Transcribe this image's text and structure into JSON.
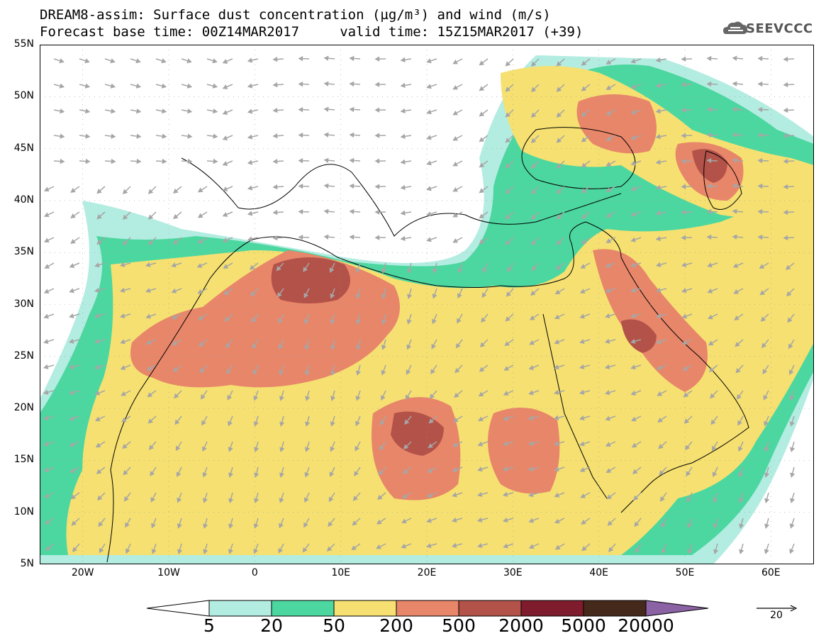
{
  "title": {
    "line1": "DREAM8-assim: Surface dust concentration (µg/m³) and wind (m/s)",
    "line2": "Forecast base time: 00Z14MAR2017     valid time: 15Z15MAR2017 (+39)"
  },
  "logo": {
    "text": "SEEVCCC",
    "icon": "cloud-icon"
  },
  "axes": {
    "lat_labels": [
      "55N",
      "50N",
      "45N",
      "40N",
      "35N",
      "30N",
      "25N",
      "20N",
      "15N",
      "10N",
      "5N"
    ],
    "lat_values": [
      55,
      50,
      45,
      40,
      35,
      30,
      25,
      20,
      15,
      10,
      5
    ],
    "lon_labels": [
      "20W",
      "10W",
      "0",
      "10E",
      "20E",
      "30E",
      "40E",
      "50E",
      "60E"
    ],
    "lon_values": [
      -20,
      -10,
      0,
      10,
      20,
      30,
      40,
      50,
      60
    ],
    "lat_range": [
      5,
      55
    ],
    "lon_range": [
      -25,
      65
    ]
  },
  "colorbar": {
    "labels": [
      "5",
      "20",
      "50",
      "200",
      "500",
      "2000",
      "5000",
      "20000"
    ],
    "colors": [
      "#ffffff",
      "#b3ece1",
      "#4cd7a0",
      "#f5e071",
      "#e8866a",
      "#b25249",
      "#7e1b2c",
      "#45291a",
      "#8b62a3"
    ]
  },
  "wind_reference": {
    "label": "20"
  },
  "map_colors": {
    "ocean": "#ffffff",
    "level_5": "#b3ece1",
    "level_20": "#4cd7a0",
    "level_50": "#f5e071",
    "level_200": "#e8866a",
    "level_500": "#b25249",
    "level_2000": "#7e1b2c",
    "arrow": "#a6a6a6"
  }
}
